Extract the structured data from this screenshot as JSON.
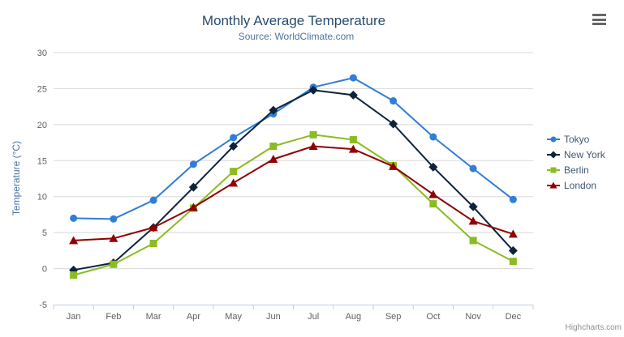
{
  "chart_data": {
    "type": "line",
    "title": "Monthly Average Temperature",
    "subtitle": "Source: WorldClimate.com",
    "xlabel": "",
    "ylabel": "Temperature (°C)",
    "ylim": [
      -5,
      30
    ],
    "yticks": [
      -5,
      0,
      5,
      10,
      15,
      20,
      25,
      30
    ],
    "grid": true,
    "legend_position": "right-middle-vertical",
    "categories": [
      "Jan",
      "Feb",
      "Mar",
      "Apr",
      "May",
      "Jun",
      "Jul",
      "Aug",
      "Sep",
      "Oct",
      "Nov",
      "Dec"
    ],
    "series": [
      {
        "name": "Tokyo",
        "color": "#2f7ed8",
        "marker": "circle",
        "values": [
          7.0,
          6.9,
          9.5,
          14.5,
          18.2,
          21.5,
          25.2,
          26.5,
          23.3,
          18.3,
          13.9,
          9.6
        ]
      },
      {
        "name": "New York",
        "color": "#0d233a",
        "marker": "diamond",
        "values": [
          -0.2,
          0.8,
          5.7,
          11.3,
          17.0,
          22.0,
          24.8,
          24.1,
          20.1,
          14.1,
          8.6,
          2.5
        ]
      },
      {
        "name": "Berlin",
        "color": "#8bbc21",
        "marker": "square",
        "values": [
          -0.9,
          0.6,
          3.5,
          8.4,
          13.5,
          17.0,
          18.6,
          17.9,
          14.3,
          9.0,
          3.9,
          1.0
        ]
      },
      {
        "name": "London",
        "color": "#910000",
        "marker": "triangle",
        "values": [
          3.9,
          4.2,
          5.7,
          8.5,
          11.9,
          15.2,
          17.0,
          16.6,
          14.2,
          10.3,
          6.6,
          4.8
        ]
      }
    ],
    "colors": {
      "grid_line": "#D8D8D8",
      "axis_line": "#C0D0E0",
      "title_text": "#274b6d",
      "subtitle_text": "#4d759e",
      "legend_text": "#3E576F",
      "axis_label_text": "#606060",
      "credits_text": "#909090",
      "menu_icon": "#666666"
    }
  },
  "credits": {
    "text": "Highcharts.com"
  },
  "menu": {
    "icon": "hamburger-icon"
  }
}
